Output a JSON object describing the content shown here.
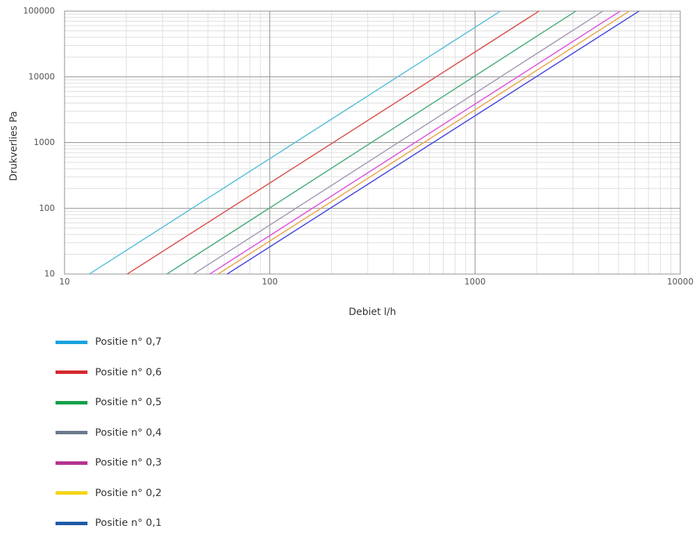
{
  "chart_data": {
    "type": "line",
    "x_scale": "log",
    "y_scale": "log",
    "xlabel": "Debiet l/h",
    "ylabel": "Drukverlies Pa",
    "xlim": [
      10,
      10000
    ],
    "ylim": [
      10,
      100000
    ],
    "x_ticks": [
      "10",
      "100",
      "1000",
      "10000"
    ],
    "y_ticks": [
      "10",
      "100",
      "1000",
      "10000",
      "100000"
    ],
    "grid": true,
    "legend_position": "bottom-left",
    "series": [
      {
        "name": "Positie n° 0,7",
        "color": "#5bc0d9",
        "legend_color": "#1aa3dd",
        "x": [
          13.2,
          1330
        ],
        "y": [
          10,
          100000
        ]
      },
      {
        "name": "Positie n° 0,6",
        "color": "#d9534f",
        "legend_color": "#d42a2f",
        "x": [
          20.2,
          2050
        ],
        "y": [
          10,
          100000
        ]
      },
      {
        "name": "Positie n° 0,5",
        "color": "#4cae7c",
        "legend_color": "#14a04a",
        "x": [
          31.5,
          3100
        ],
        "y": [
          10,
          100000
        ]
      },
      {
        "name": "Positie n° 0,4",
        "color": "#a79bb5",
        "legend_color": "#6b7b8c",
        "x": [
          42.5,
          4200
        ],
        "y": [
          10,
          100000
        ]
      },
      {
        "name": "Positie n° 0,3",
        "color": "#dd55dd",
        "legend_color": "#b5328f",
        "x": [
          51,
          5100
        ],
        "y": [
          10,
          100000
        ]
      },
      {
        "name": "Positie n° 0,2",
        "color": "#e8a84a",
        "legend_color": "#f5d41a",
        "x": [
          56,
          5650
        ],
        "y": [
          10,
          100000
        ]
      },
      {
        "name": "Positie n° 0,1",
        "color": "#4848dd",
        "legend_color": "#1f5aa6",
        "x": [
          62,
          6300
        ],
        "y": [
          10,
          100000
        ]
      }
    ]
  }
}
